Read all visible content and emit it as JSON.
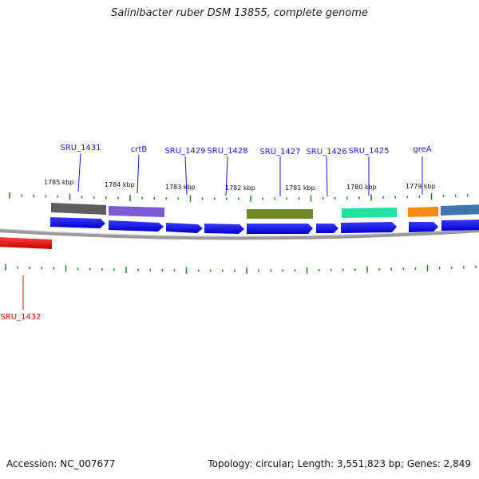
{
  "title": "Salinibacter ruber DSM 13855, complete genome",
  "accession": "Accession: NC_007677",
  "summary": "Topology: circular; Length: 3,551,823 bp; Genes: 2,849",
  "colors": {
    "forward_cds": "#1010e6",
    "reverse_gene": "#e61010",
    "label_forward": "#1a1acc",
    "label_reverse": "#cc1010",
    "tick": "#2e8b2e",
    "backbone": "#8a8a8a"
  },
  "scale_labels": [
    "1785 kbp",
    "1784 kbp",
    "1783 kbp",
    "1782 kbp",
    "1781 kbp",
    "1780 kbp",
    "1779 kbp"
  ],
  "genes": [
    {
      "label": "SRU_1431",
      "strand": "+",
      "feature_color": "#5a5a5a"
    },
    {
      "label": "crtB",
      "strand": "+",
      "feature_color": "#7b5bd6"
    },
    {
      "label": "SRU_1429",
      "strand": "+",
      "feature_color": ""
    },
    {
      "label": "SRU_1428",
      "strand": "+",
      "feature_color": ""
    },
    {
      "label": "SRU_1427",
      "strand": "+",
      "feature_color": "#6f8a2a"
    },
    {
      "label": "SRU_1426",
      "strand": "+",
      "feature_color": ""
    },
    {
      "label": "SRU_1425",
      "strand": "+",
      "feature_color": "#22e0a0"
    },
    {
      "label": "greA",
      "strand": "+",
      "feature_color": "#ff8c10"
    },
    {
      "label": "",
      "strand": "+",
      "feature_color": "#3f77b0"
    },
    {
      "label": "SRU_1432",
      "strand": "-",
      "feature_color": ""
    }
  ]
}
